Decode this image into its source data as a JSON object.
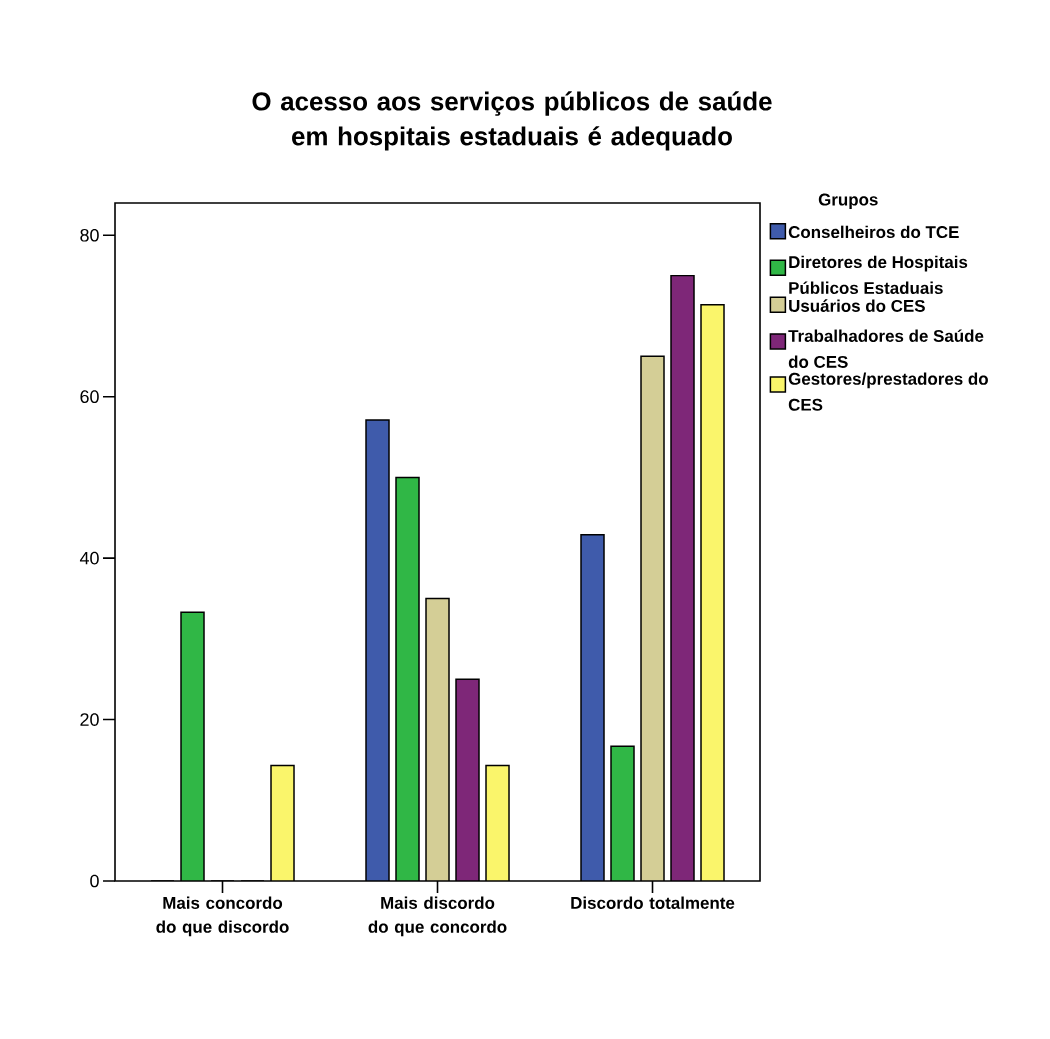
{
  "chart_data": {
    "type": "bar",
    "title": "O acesso aos serviços públicos de saúde em hospitais estaduais é adequado",
    "legend_title": "Grupos",
    "legend": "right",
    "grid": false,
    "categories": [
      "Mais concordo do que discordo",
      "Mais discordo do que concordo",
      "Discordo totalmente"
    ],
    "ylim": [
      0,
      84
    ],
    "yticks": [
      0,
      20,
      40,
      60,
      80
    ],
    "series": [
      {
        "name": "Conselheiros do TCE",
        "color": "#3f5bab",
        "values": [
          0,
          57.1,
          42.9
        ]
      },
      {
        "name": "Diretores de Hospitais Públicos Estaduais",
        "color": "#30b746",
        "values": [
          33.3,
          50.0,
          16.7
        ]
      },
      {
        "name": "Usuários do CES",
        "color": "#d4ce96",
        "values": [
          0,
          35.0,
          65.0
        ]
      },
      {
        "name": "Trabalhadores de Saúde do CES",
        "color": "#7e2778",
        "values": [
          0,
          25.0,
          75.0
        ]
      },
      {
        "name": "Gestores/prestadores do CES",
        "color": "#faf56b",
        "values": [
          14.3,
          14.3,
          71.4
        ]
      }
    ]
  }
}
